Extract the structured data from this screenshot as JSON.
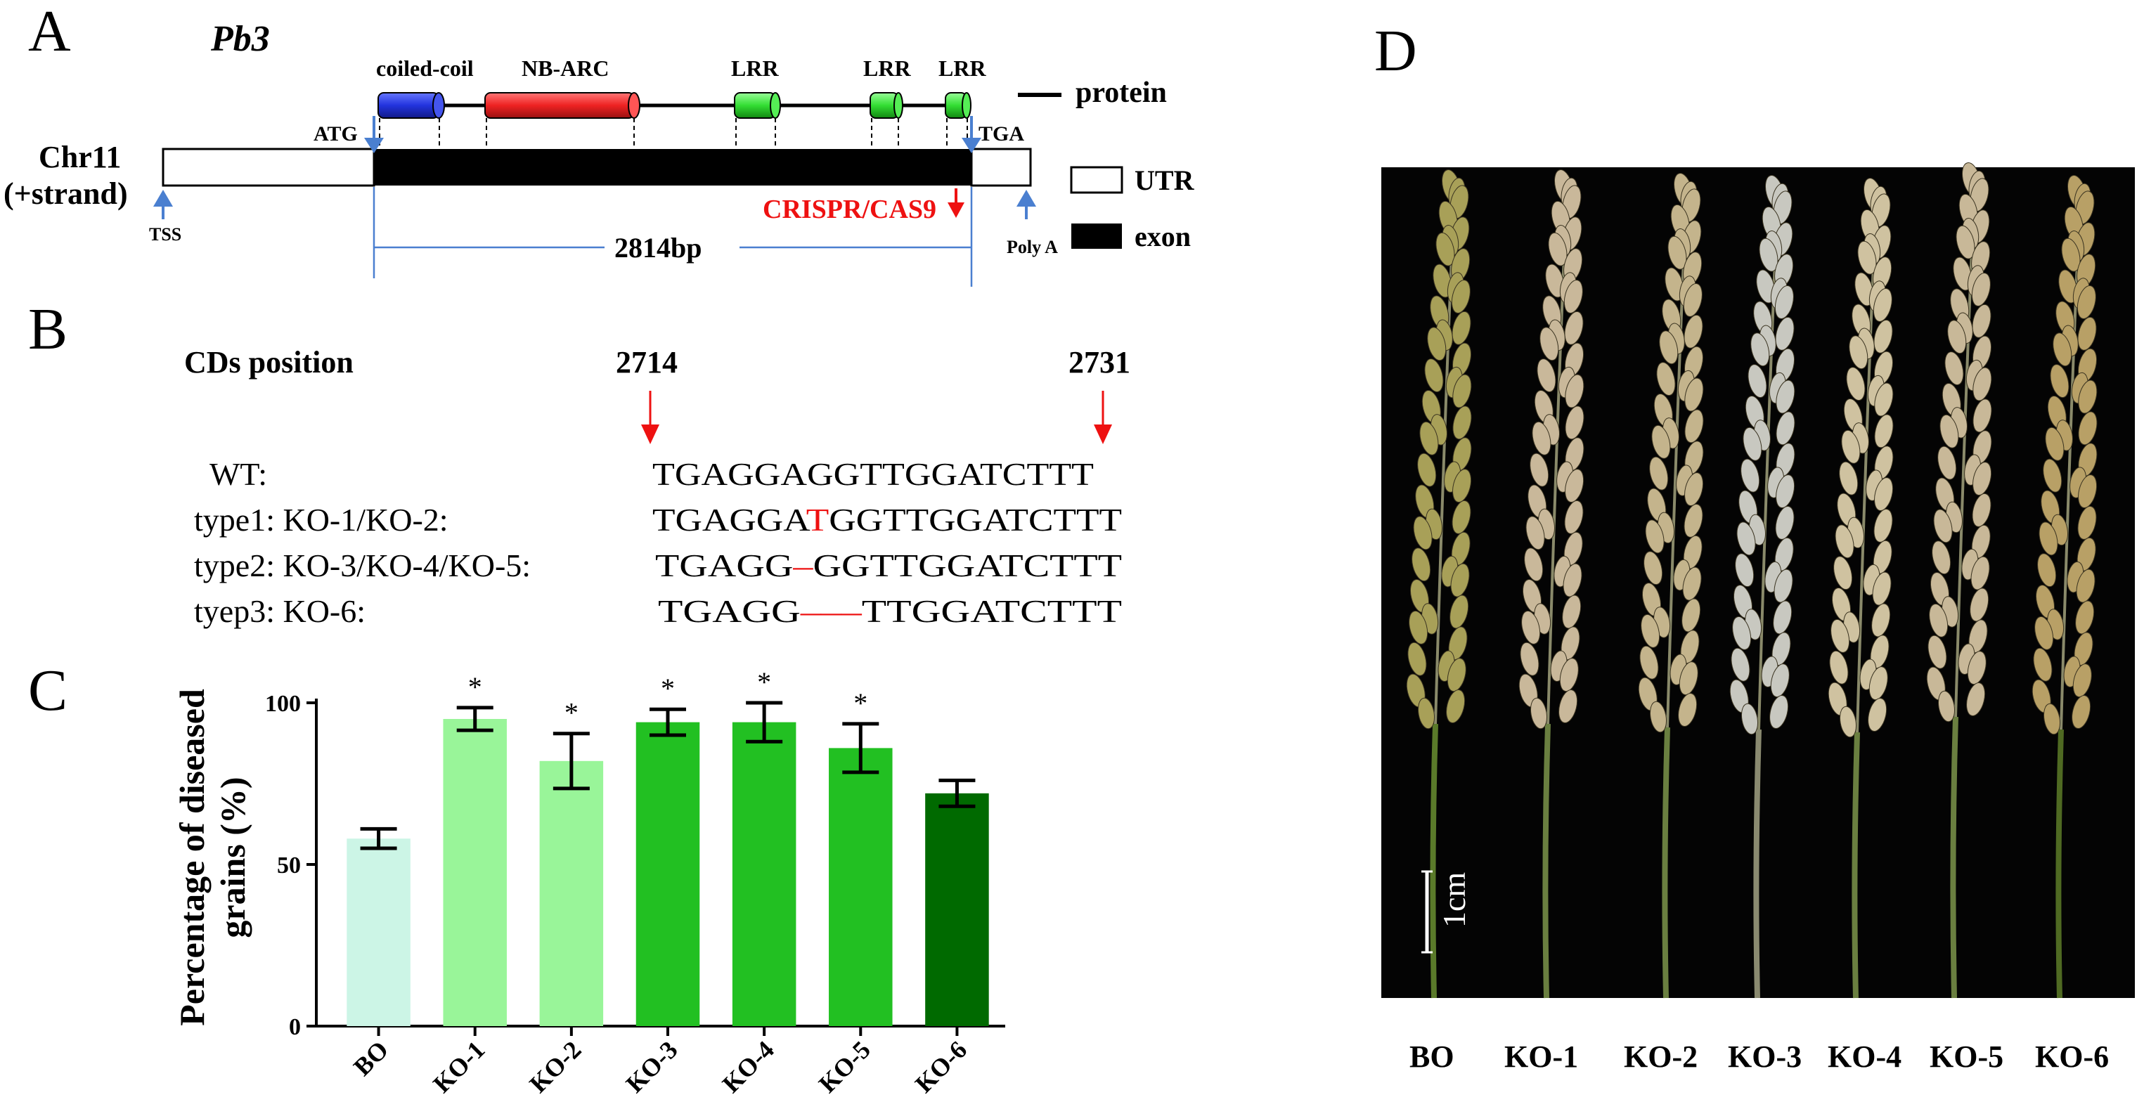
{
  "panel_a": {
    "letter": "A",
    "gene": "Pb3",
    "chromosome_line1": "Chr11",
    "chromosome_line2": "(+strand)",
    "domains": [
      {
        "label": "coiled-coil",
        "color": "#2233dd"
      },
      {
        "label": "NB-ARC",
        "color": "#ee2222"
      },
      {
        "label": "LRR",
        "color": "#33dd33"
      },
      {
        "label": "LRR",
        "color": "#33dd33"
      },
      {
        "label": "LRR",
        "color": "#33dd33"
      }
    ],
    "protein_label": "protein",
    "atg": "ATG",
    "tga": "TGA",
    "tss": "TSS",
    "polya": "Poly A",
    "crispr": "CRISPR/CAS9",
    "length": "2814bp",
    "legend_utr": "UTR",
    "legend_exon": "exon",
    "arrow_color": "#4a7fd0",
    "crispr_color": "#ee1111"
  },
  "panel_b": {
    "letter": "B",
    "position_label": "CDs position",
    "pos_start": "2714",
    "pos_end": "2731",
    "rows": [
      {
        "label": "WT:",
        "pre": "TGAGGAGGTTGGATCTTT",
        "mut": "",
        "post": ""
      },
      {
        "label": "type1: KO-1/KO-2:",
        "pre": "TGAGGA",
        "mut": "T",
        "post": "GGTTGGATCTTT"
      },
      {
        "label": "type2: KO-3/KO-4/KO-5:",
        "pre": "TGAGG",
        "mut": "–",
        "post": "GGTTGGATCTTT"
      },
      {
        "label": "tyep3: KO-6:",
        "pre": "TGAGG",
        "mut": "–––",
        "post": "TTGGATCTTT"
      }
    ]
  },
  "panel_c": {
    "letter": "C",
    "chart_data": {
      "type": "bar",
      "title": "",
      "ylabel_line1": "Percentage of diseased",
      "ylabel_line2": "grains (%)",
      "ylim": [
        0,
        100
      ],
      "yticks": [
        "0",
        "50",
        "100"
      ],
      "categories": [
        "BO",
        "KO-1",
        "KO-2",
        "KO-3",
        "KO-4",
        "KO-5",
        "KO-6"
      ],
      "values": [
        58,
        95,
        82,
        94,
        94,
        86,
        72
      ],
      "errors": [
        3,
        3.5,
        8.5,
        4,
        6,
        7.5,
        4
      ],
      "significance": [
        "",
        "*",
        "*",
        "*",
        "*",
        "*",
        ""
      ],
      "colors": [
        "#ccf5e6",
        "#99f599",
        "#99f599",
        "#22c022",
        "#22c022",
        "#22c022",
        "#006a00"
      ]
    }
  },
  "panel_d": {
    "letter": "D",
    "scale_label": "1cm",
    "labels": [
      "BO",
      "KO-1",
      "KO-2",
      "KO-3",
      "KO-4",
      "KO-5",
      "KO-6"
    ],
    "panicle_colors": [
      "#a8a058",
      "#c9b89a",
      "#c4b48c",
      "#c8c8c0",
      "#cfc2a0",
      "#c8b898",
      "#b8a066"
    ]
  }
}
